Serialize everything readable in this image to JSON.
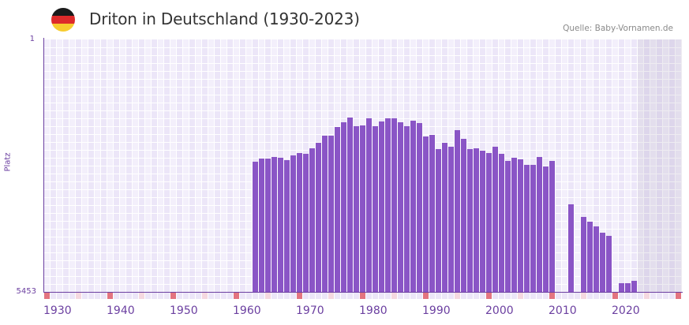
{
  "header": {
    "title": "Driton in Deutschland (1930-2023)",
    "source": "Quelle: Baby-Vornamen.de",
    "flag": "germany-flag-icon",
    "flag_colors": [
      "#1a1a1a",
      "#dd2a2a",
      "#f7cc2e"
    ]
  },
  "colors": {
    "bar": "#8a55c6",
    "axis": "#6b3fa0",
    "grid_col_a": "#f3effb",
    "grid_col_b": "#ece6f8",
    "tick_decade": "#e37480",
    "tick_half": "#f5d8e0",
    "tick_other": "#ece6f8"
  },
  "chart_data": {
    "type": "bar",
    "title": "Driton in Deutschland (1930-2023)",
    "xlabel": "",
    "ylabel": "Platz",
    "y_inverted": true,
    "ylim": [
      1,
      5453
    ],
    "xlim": [
      1930,
      2030
    ],
    "x_ticks": [
      "1930",
      "1940",
      "1950",
      "1960",
      "1970",
      "1980",
      "1990",
      "2000",
      "2010",
      "2020"
    ],
    "y_ticks": [
      "1",
      "5453"
    ],
    "grid": true,
    "future_shaded_from": 2024,
    "series": [
      {
        "name": "Platz",
        "points": [
          {
            "year": 1963,
            "rank": 2642
          },
          {
            "year": 1964,
            "rank": 2574
          },
          {
            "year": 1965,
            "rank": 2574
          },
          {
            "year": 1966,
            "rank": 2540
          },
          {
            "year": 1967,
            "rank": 2557
          },
          {
            "year": 1968,
            "rank": 2608
          },
          {
            "year": 1969,
            "rank": 2506
          },
          {
            "year": 1970,
            "rank": 2454
          },
          {
            "year": 1971,
            "rank": 2471
          },
          {
            "year": 1972,
            "rank": 2352
          },
          {
            "year": 1973,
            "rank": 2233
          },
          {
            "year": 1974,
            "rank": 2080
          },
          {
            "year": 1975,
            "rank": 2080
          },
          {
            "year": 1976,
            "rank": 1892
          },
          {
            "year": 1977,
            "rank": 1790
          },
          {
            "year": 1978,
            "rank": 1688
          },
          {
            "year": 1979,
            "rank": 1875
          },
          {
            "year": 1980,
            "rank": 1858
          },
          {
            "year": 1981,
            "rank": 1705
          },
          {
            "year": 1982,
            "rank": 1875
          },
          {
            "year": 1983,
            "rank": 1773
          },
          {
            "year": 1984,
            "rank": 1705
          },
          {
            "year": 1985,
            "rank": 1705
          },
          {
            "year": 1986,
            "rank": 1790
          },
          {
            "year": 1987,
            "rank": 1875
          },
          {
            "year": 1988,
            "rank": 1756
          },
          {
            "year": 1989,
            "rank": 1807
          },
          {
            "year": 1990,
            "rank": 2097
          },
          {
            "year": 1991,
            "rank": 2063
          },
          {
            "year": 1992,
            "rank": 2369
          },
          {
            "year": 1993,
            "rank": 2233
          },
          {
            "year": 1994,
            "rank": 2318
          },
          {
            "year": 1995,
            "rank": 1960
          },
          {
            "year": 1996,
            "rank": 2148
          },
          {
            "year": 1997,
            "rank": 2369
          },
          {
            "year": 1998,
            "rank": 2352
          },
          {
            "year": 1999,
            "rank": 2403
          },
          {
            "year": 2000,
            "rank": 2454
          },
          {
            "year": 2001,
            "rank": 2318
          },
          {
            "year": 2002,
            "rank": 2471
          },
          {
            "year": 2003,
            "rank": 2625
          },
          {
            "year": 2004,
            "rank": 2557
          },
          {
            "year": 2005,
            "rank": 2591
          },
          {
            "year": 2006,
            "rank": 2710
          },
          {
            "year": 2007,
            "rank": 2710
          },
          {
            "year": 2008,
            "rank": 2540
          },
          {
            "year": 2009,
            "rank": 2744
          },
          {
            "year": 2010,
            "rank": 2625
          },
          {
            "year": 2013,
            "rank": 3562
          },
          {
            "year": 2015,
            "rank": 3834
          },
          {
            "year": 2016,
            "rank": 3937
          },
          {
            "year": 2017,
            "rank": 4039
          },
          {
            "year": 2018,
            "rank": 4175
          },
          {
            "year": 2019,
            "rank": 4243
          },
          {
            "year": 2021,
            "rank": 5266
          },
          {
            "year": 2022,
            "rank": 5266
          },
          {
            "year": 2023,
            "rank": 5215
          }
        ]
      }
    ]
  }
}
